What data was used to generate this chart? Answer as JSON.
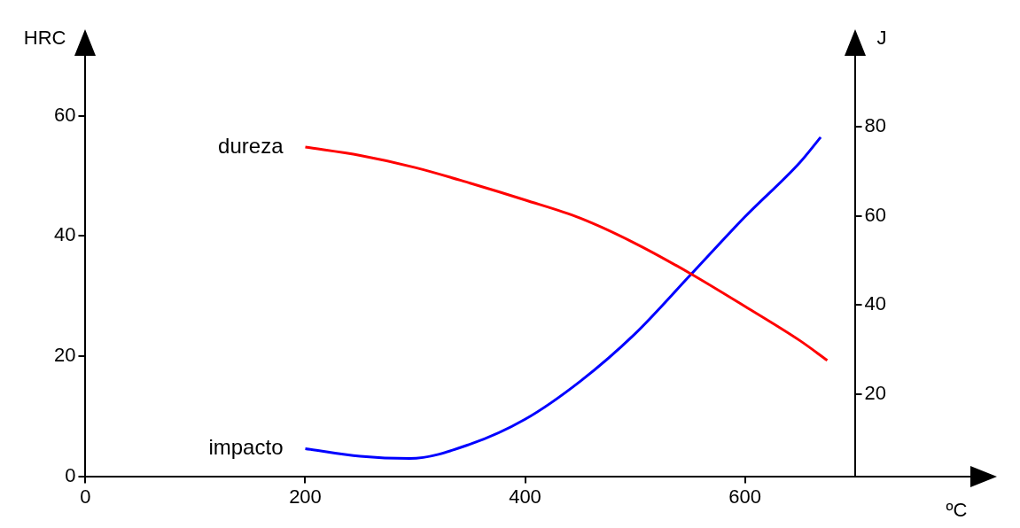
{
  "chart_data": {
    "type": "line",
    "xlabel": "ºC",
    "ylabel": "HRC",
    "y2label": "J",
    "xlim": [
      0,
      700
    ],
    "xticks": [
      0,
      200,
      400,
      600
    ],
    "ylim": [
      0,
      70
    ],
    "yticks": [
      0,
      20,
      40,
      60
    ],
    "y2lim": [
      1.5,
      96
    ],
    "y2ticks": [
      20,
      40,
      60,
      80
    ],
    "grid": false,
    "legend": false,
    "marker": "none",
    "line_style": "solid",
    "series": [
      {
        "name": "dureza",
        "color": "#ff0000",
        "axis": "y",
        "x": [
          200,
          250,
          300,
          350,
          400,
          450,
          500,
          550,
          600,
          650,
          675
        ],
        "values": [
          54.8,
          53.4,
          51.4,
          48.8,
          46.0,
          43.0,
          38.8,
          33.8,
          28.3,
          22.6,
          19.3
        ]
      },
      {
        "name": "impacto",
        "color": "#0000ff",
        "axis": "y2",
        "x": [
          200,
          250,
          295,
          350,
          400,
          450,
          500,
          550,
          600,
          650,
          669
        ],
        "values": [
          7.7,
          6.0,
          5.5,
          8.7,
          14.3,
          22.8,
          33.5,
          46.6,
          59.8,
          72,
          77.7
        ]
      }
    ]
  }
}
